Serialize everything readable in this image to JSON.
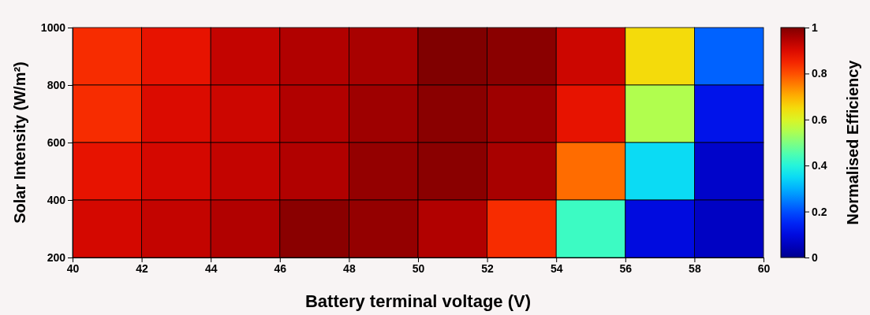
{
  "chart_data": {
    "type": "heatmap",
    "xlabel": "Battery terminal voltage (V)",
    "ylabel": "Solar Intensity (W/m²)",
    "clabel": "Normalised Efficiency",
    "xlim": [
      40,
      60
    ],
    "xticks": [
      40,
      42,
      44,
      46,
      48,
      50,
      52,
      54,
      56,
      58,
      60
    ],
    "ylim": [
      200,
      1000
    ],
    "yticks": [
      200,
      400,
      600,
      800,
      1000
    ],
    "clim": [
      0,
      1
    ],
    "cticks": [
      0,
      0.2,
      0.4,
      0.6,
      0.8,
      1
    ],
    "cells": [
      [
        0.84,
        0.88,
        0.93,
        0.95,
        0.96,
        1.0,
        0.99,
        0.92,
        0.65,
        0.22
      ],
      [
        0.84,
        0.9,
        0.92,
        0.95,
        0.97,
        0.99,
        0.97,
        0.88,
        0.55,
        0.12
      ],
      [
        0.88,
        0.91,
        0.93,
        0.95,
        0.98,
        0.99,
        0.96,
        0.77,
        0.35,
        0.07
      ],
      [
        0.91,
        0.93,
        0.95,
        0.99,
        0.98,
        0.95,
        0.84,
        0.43,
        0.1,
        0.06
      ]
    ]
  }
}
